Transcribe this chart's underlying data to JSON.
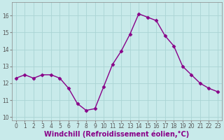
{
  "x": [
    0,
    1,
    2,
    3,
    4,
    5,
    6,
    7,
    8,
    9,
    10,
    11,
    12,
    13,
    14,
    15,
    16,
    17,
    18,
    19,
    20,
    21,
    22,
    23
  ],
  "y": [
    12.3,
    12.5,
    12.3,
    12.5,
    12.5,
    12.3,
    11.7,
    10.8,
    10.4,
    10.5,
    11.8,
    13.1,
    13.9,
    14.9,
    16.1,
    15.9,
    15.7,
    14.8,
    14.2,
    13.0,
    12.5,
    12.0,
    11.7,
    11.5
  ],
  "line_color": "#880088",
  "marker": "D",
  "marker_size": 2.5,
  "background_color": "#c8eaea",
  "grid_color": "#aad4d4",
  "xlabel": "Windchill (Refroidissement éolien,°C)",
  "xlabel_fontsize": 7,
  "ylim": [
    9.8,
    16.8
  ],
  "xlim": [
    -0.5,
    23.5
  ],
  "ytick_values": [
    10,
    11,
    12,
    13,
    14,
    15,
    16
  ],
  "xtick_values": [
    0,
    1,
    2,
    3,
    4,
    5,
    6,
    7,
    8,
    9,
    10,
    11,
    12,
    13,
    14,
    15,
    16,
    17,
    18,
    19,
    20,
    21,
    22,
    23
  ],
  "tick_fontsize": 5.5,
  "line_width": 1.0,
  "marker_color": "#880088",
  "spine_color": "#888888",
  "tick_color": "#555555"
}
